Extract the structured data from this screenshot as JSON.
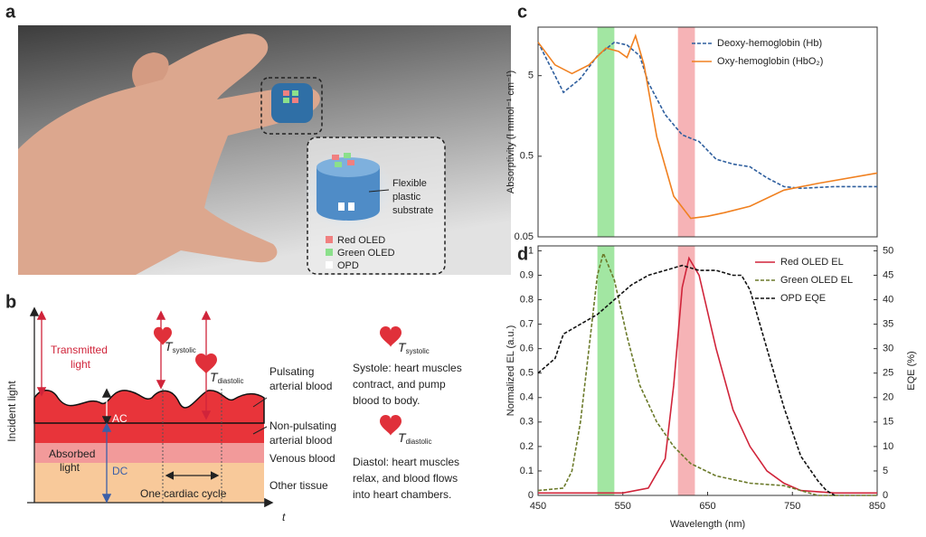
{
  "panel_labels": [
    "a",
    "b",
    "c",
    "d"
  ],
  "panel_a": {
    "callout_lines": [
      "Flexible",
      "plastic",
      "substrate"
    ],
    "legend": [
      "Red OLED",
      "Green OLED",
      "OPD"
    ]
  },
  "panel_b": {
    "incident_light": "Incident light",
    "transmitted_light": [
      "Transmitted",
      "light"
    ],
    "t_systolic": {
      "symbol": "T",
      "subscript": "systolic"
    },
    "t_diastolic": {
      "symbol": "T",
      "subscript": "diastolic"
    },
    "layers": [
      [
        "Pulsating",
        "arterial blood"
      ],
      [
        "Non-pulsating",
        "arterial blood"
      ],
      [
        "Venous blood"
      ],
      [
        "Other tissue"
      ]
    ],
    "ac": "AC",
    "dc": "DC",
    "absorbed_light": [
      "Absorbed",
      "light"
    ],
    "cycle": "One cardiac cycle",
    "time_axis": "t",
    "systole": [
      "Systole: heart muscles",
      "contract, and pump",
      "blood to body."
    ],
    "diastole": [
      "Diastol: heart muscles",
      "relax, and blood flows",
      "into heart chambers."
    ]
  },
  "chart_data": [
    {
      "type": "line",
      "y_label": "Absorptivity (l mmol⁻¹ cm⁻¹)",
      "xlim": [
        450,
        850
      ],
      "ylim": [
        0.05,
        20
      ],
      "yticks": [
        0.05,
        0.5,
        5
      ],
      "y_scale": "log",
      "legend": "upper right",
      "highlight_bands": [
        {
          "color": "#8be08b",
          "x": [
            520,
            540
          ]
        },
        {
          "color": "#f4a0a4",
          "x": [
            615,
            635
          ]
        }
      ],
      "series": [
        {
          "name": "Deoxy-hemoglobin (Hb)",
          "color": "#2f5f9e",
          "linestyle": "dashed",
          "x": [
            450,
            480,
            500,
            520,
            540,
            555,
            570,
            580,
            600,
            620,
            640,
            660,
            680,
            700,
            720,
            740,
            760,
            800,
            850
          ],
          "values": [
            13,
            3.1,
            4.6,
            8.8,
            13,
            12,
            8.8,
            4.1,
            1.64,
            0.92,
            0.76,
            0.46,
            0.4,
            0.37,
            0.27,
            0.21,
            0.2,
            0.21,
            0.21
          ]
        },
        {
          "name": "Oxy-hemoglobin (HbO₂)",
          "color": "#f08020",
          "linestyle": "solid",
          "x": [
            450,
            470,
            490,
            510,
            530,
            545,
            555,
            565,
            575,
            590,
            610,
            630,
            650,
            670,
            700,
            740,
            780,
            850
          ],
          "values": [
            13,
            6.8,
            5.3,
            6.8,
            11,
            10,
            8.4,
            15.6,
            6.8,
            0.87,
            0.16,
            0.085,
            0.09,
            0.1,
            0.12,
            0.19,
            0.23,
            0.31
          ]
        }
      ]
    },
    {
      "type": "line",
      "x_label": "Wavelength (nm)",
      "y_label": "Normalized EL (a.u.)",
      "y2_label": "EQE (%)",
      "xlim": [
        450,
        850
      ],
      "xticks": [
        450,
        550,
        650,
        750,
        850
      ],
      "ylim": [
        0,
        1.02
      ],
      "yticks": [
        0,
        0.1,
        0.2,
        0.3,
        0.4,
        0.5,
        0.6,
        0.7,
        0.8,
        0.9,
        1
      ],
      "y2lim": [
        0,
        51
      ],
      "y2ticks": [
        0,
        5,
        10,
        15,
        20,
        25,
        30,
        35,
        40,
        45,
        50
      ],
      "legend": "upper right",
      "highlight_bands": [
        {
          "color": "#8be08b",
          "x": [
            520,
            540
          ]
        },
        {
          "color": "#f4a0a4",
          "x": [
            615,
            635
          ]
        }
      ],
      "series": [
        {
          "name": "Red OLED EL",
          "color": "#d0243a",
          "linestyle": "solid",
          "x": [
            450,
            550,
            580,
            600,
            610,
            620,
            628,
            640,
            660,
            680,
            700,
            720,
            740,
            760,
            800,
            850
          ],
          "values": [
            0.01,
            0.01,
            0.03,
            0.15,
            0.45,
            0.85,
            0.97,
            0.9,
            0.6,
            0.35,
            0.2,
            0.1,
            0.05,
            0.02,
            0.01,
            0.01
          ]
        },
        {
          "name": "Green OLED EL",
          "color": "#6b7a2a",
          "linestyle": "dashed",
          "x": [
            450,
            480,
            490,
            500,
            510,
            520,
            527,
            540,
            555,
            570,
            590,
            610,
            630,
            660,
            700,
            740,
            760,
            780,
            800,
            850
          ],
          "values": [
            0.02,
            0.03,
            0.1,
            0.3,
            0.6,
            0.9,
            0.99,
            0.88,
            0.65,
            0.45,
            0.3,
            0.2,
            0.13,
            0.08,
            0.05,
            0.04,
            0.02,
            0,
            0,
            0
          ]
        },
        {
          "name": "OPD EQE",
          "color": "#111111",
          "linestyle": "dashed",
          "axis": "y2",
          "x": [
            450,
            470,
            480,
            500,
            520,
            540,
            560,
            580,
            600,
            620,
            640,
            660,
            680,
            690,
            700,
            720,
            740,
            760,
            780,
            790,
            800
          ],
          "values": [
            25,
            28,
            33,
            35,
            37,
            40,
            43,
            45,
            46,
            47,
            46,
            46,
            45,
            45,
            42,
            30,
            18,
            8,
            3,
            1,
            0
          ]
        }
      ]
    }
  ]
}
